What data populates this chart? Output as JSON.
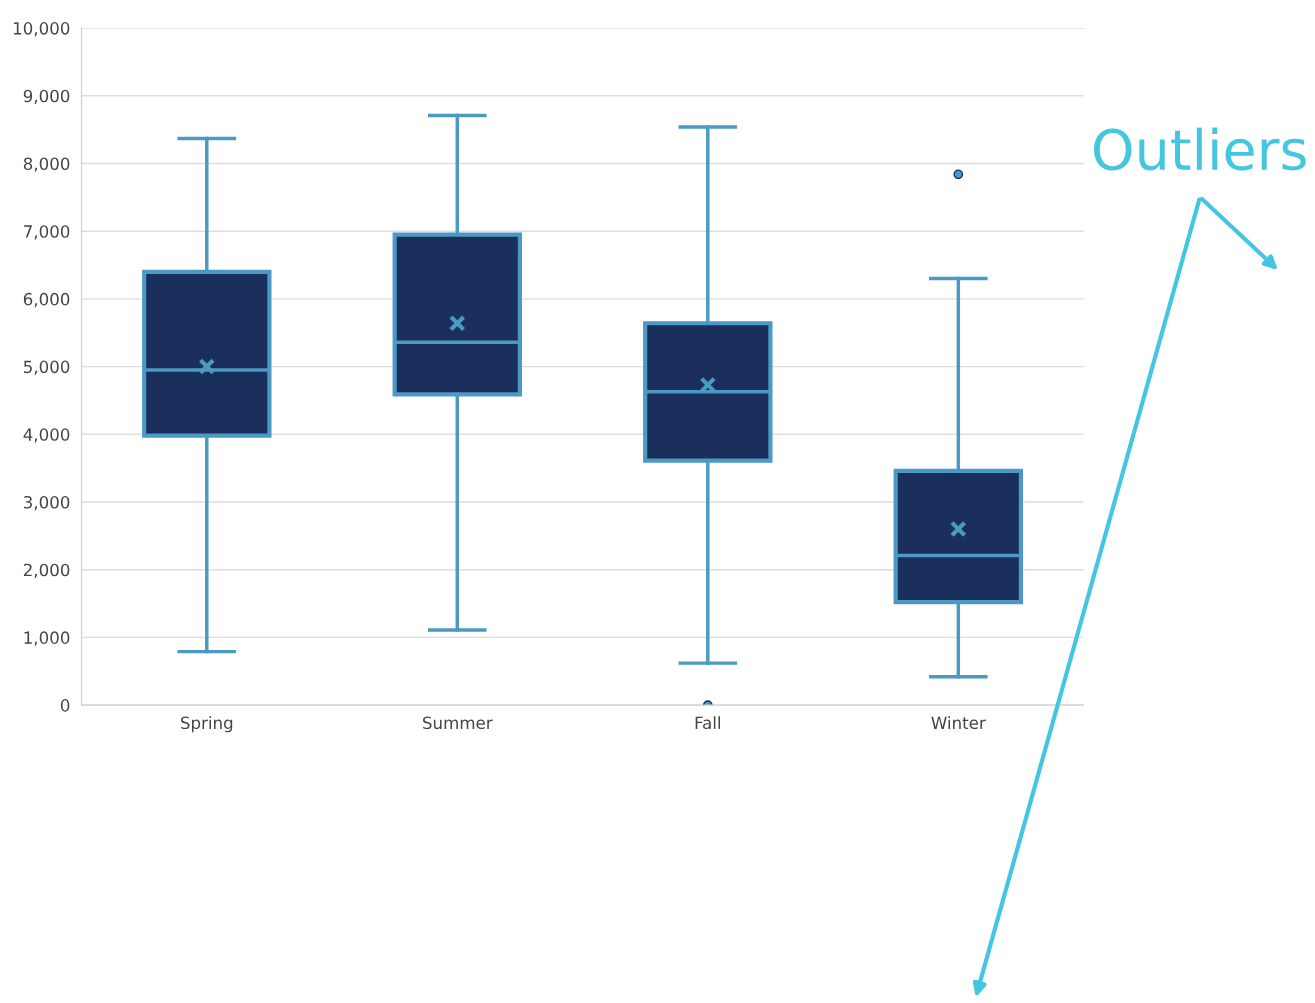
{
  "chart_data": {
    "type": "box",
    "categories": [
      "Spring",
      "Summer",
      "Fall",
      "Winter"
    ],
    "boxes": [
      {
        "low": 790,
        "q1": 3980,
        "median": 4950,
        "q3": 6400,
        "high": 8370,
        "mean": 5000
      },
      {
        "low": 1110,
        "q1": 4590,
        "median": 5360,
        "q3": 6950,
        "high": 8710,
        "mean": 5640
      },
      {
        "low": 620,
        "q1": 3610,
        "median": 4630,
        "q3": 5640,
        "high": 8540,
        "mean": 4730,
        "outliers": [
          0
        ]
      },
      {
        "low": 420,
        "q1": 1520,
        "median": 2210,
        "q3": 3460,
        "high": 6300,
        "mean": 2600,
        "outliers": [
          7840
        ]
      }
    ],
    "color": "#1b2f5c",
    "ylim": [
      0,
      10000
    ],
    "yticks": [
      0,
      {
        "value": 1000,
        "label": "1,000"
      },
      {
        "value": 2000,
        "label": "2,000"
      },
      {
        "value": 3000,
        "label": "3,000"
      },
      {
        "value": 4000,
        "label": "4,000"
      },
      {
        "value": 5000,
        "label": "5,000"
      },
      {
        "value": 6000,
        "label": "6,000"
      },
      {
        "value": 7000,
        "label": "7,000"
      },
      {
        "value": 8000,
        "label": "8,000"
      },
      {
        "value": 9000,
        "label": "9,000"
      },
      {
        "value": 10000,
        "label": "10,000"
      }
    ],
    "grid": "y",
    "annotations": [
      "Outliers"
    ]
  }
}
